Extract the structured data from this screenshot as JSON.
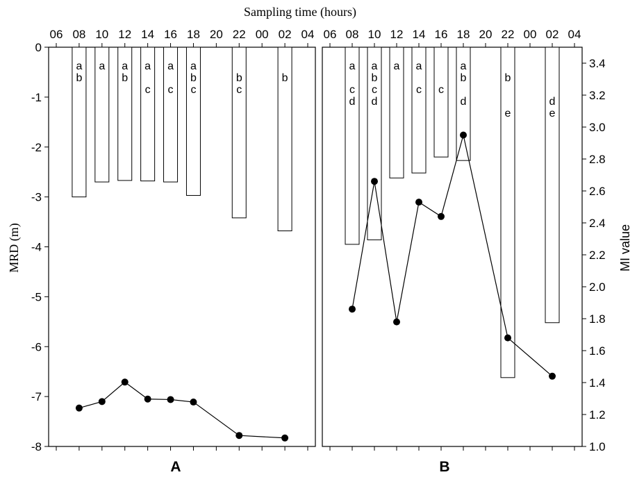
{
  "chart_data": {
    "type": "bar",
    "title": "Sampling time (hours)",
    "xlabel": "Sampling time (hours)",
    "ylabel": "MRD (m)",
    "ylabel_right": "MI value",
    "x_ticks": [
      "06",
      "08",
      "10",
      "12",
      "14",
      "16",
      "18",
      "20",
      "22",
      "00",
      "02",
      "04"
    ],
    "ylim": [
      -8,
      0
    ],
    "y_ticks": [
      "0",
      "-1",
      "-2",
      "-3",
      "-4",
      "-5",
      "-6",
      "-7",
      "-8"
    ],
    "ylim_right": [
      1.0,
      3.5
    ],
    "y_ticks_right": [
      "1.0",
      "1.2",
      "1.4",
      "1.6",
      "1.8",
      "2.0",
      "2.2",
      "2.4",
      "2.6",
      "2.8",
      "3.0",
      "3.2",
      "3.4"
    ],
    "grid": false,
    "panels": [
      {
        "label": "A",
        "series": [
          {
            "type": "bar",
            "axis": "left",
            "x": [
              "08",
              "10",
              "12",
              "14",
              "16",
              "18",
              "22",
              "02"
            ],
            "values": [
              -3.0,
              -2.7,
              -2.67,
              -2.68,
              -2.7,
              -2.97,
              -3.42,
              -3.68
            ]
          },
          {
            "type": "line",
            "axis": "left",
            "x": [
              "08",
              "10",
              "12",
              "14",
              "16",
              "18",
              "22",
              "02"
            ],
            "values": [
              -7.23,
              -7.1,
              -6.71,
              -7.05,
              -7.06,
              -7.11,
              -7.78,
              -7.83
            ]
          }
        ],
        "annotations": [
          {
            "x": "08",
            "letters": [
              "a",
              "b"
            ]
          },
          {
            "x": "10",
            "letters": [
              "a"
            ]
          },
          {
            "x": "12",
            "letters": [
              "a",
              "b"
            ]
          },
          {
            "x": "14",
            "letters": [
              "a",
              "",
              "c"
            ]
          },
          {
            "x": "16",
            "letters": [
              "a",
              "",
              "c"
            ]
          },
          {
            "x": "18",
            "letters": [
              "a",
              "b",
              "c"
            ]
          },
          {
            "x": "22",
            "letters": [
              "",
              "b",
              "c"
            ]
          },
          {
            "x": "02",
            "letters": [
              "",
              "b"
            ]
          }
        ]
      },
      {
        "label": "B",
        "series": [
          {
            "type": "bar",
            "axis": "left",
            "x": [
              "08",
              "10",
              "12",
              "14",
              "16",
              "18",
              "22",
              "02"
            ],
            "values": [
              -3.95,
              -3.86,
              -2.62,
              -2.52,
              -2.2,
              -2.27,
              -6.62,
              -5.52
            ]
          },
          {
            "type": "line",
            "axis": "right",
            "x": [
              "08",
              "10",
              "12",
              "14",
              "16",
              "18",
              "22",
              "02"
            ],
            "values": [
              1.86,
              2.66,
              1.78,
              2.53,
              2.44,
              2.95,
              1.68,
              1.44
            ]
          }
        ],
        "annotations": [
          {
            "x": "08",
            "letters": [
              "a",
              "",
              "c",
              "d"
            ]
          },
          {
            "x": "10",
            "letters": [
              "a",
              "b",
              "c",
              "d"
            ]
          },
          {
            "x": "12",
            "letters": [
              "a"
            ]
          },
          {
            "x": "14",
            "letters": [
              "a",
              "",
              "c"
            ]
          },
          {
            "x": "16",
            "letters": [
              "",
              "",
              "c"
            ]
          },
          {
            "x": "18",
            "letters": [
              "a",
              "b",
              "",
              "d"
            ]
          },
          {
            "x": "22",
            "letters": [
              "",
              "b",
              "",
              "",
              "e"
            ]
          },
          {
            "x": "02",
            "letters": [
              "",
              "",
              "",
              "d",
              "e"
            ]
          }
        ]
      }
    ]
  }
}
